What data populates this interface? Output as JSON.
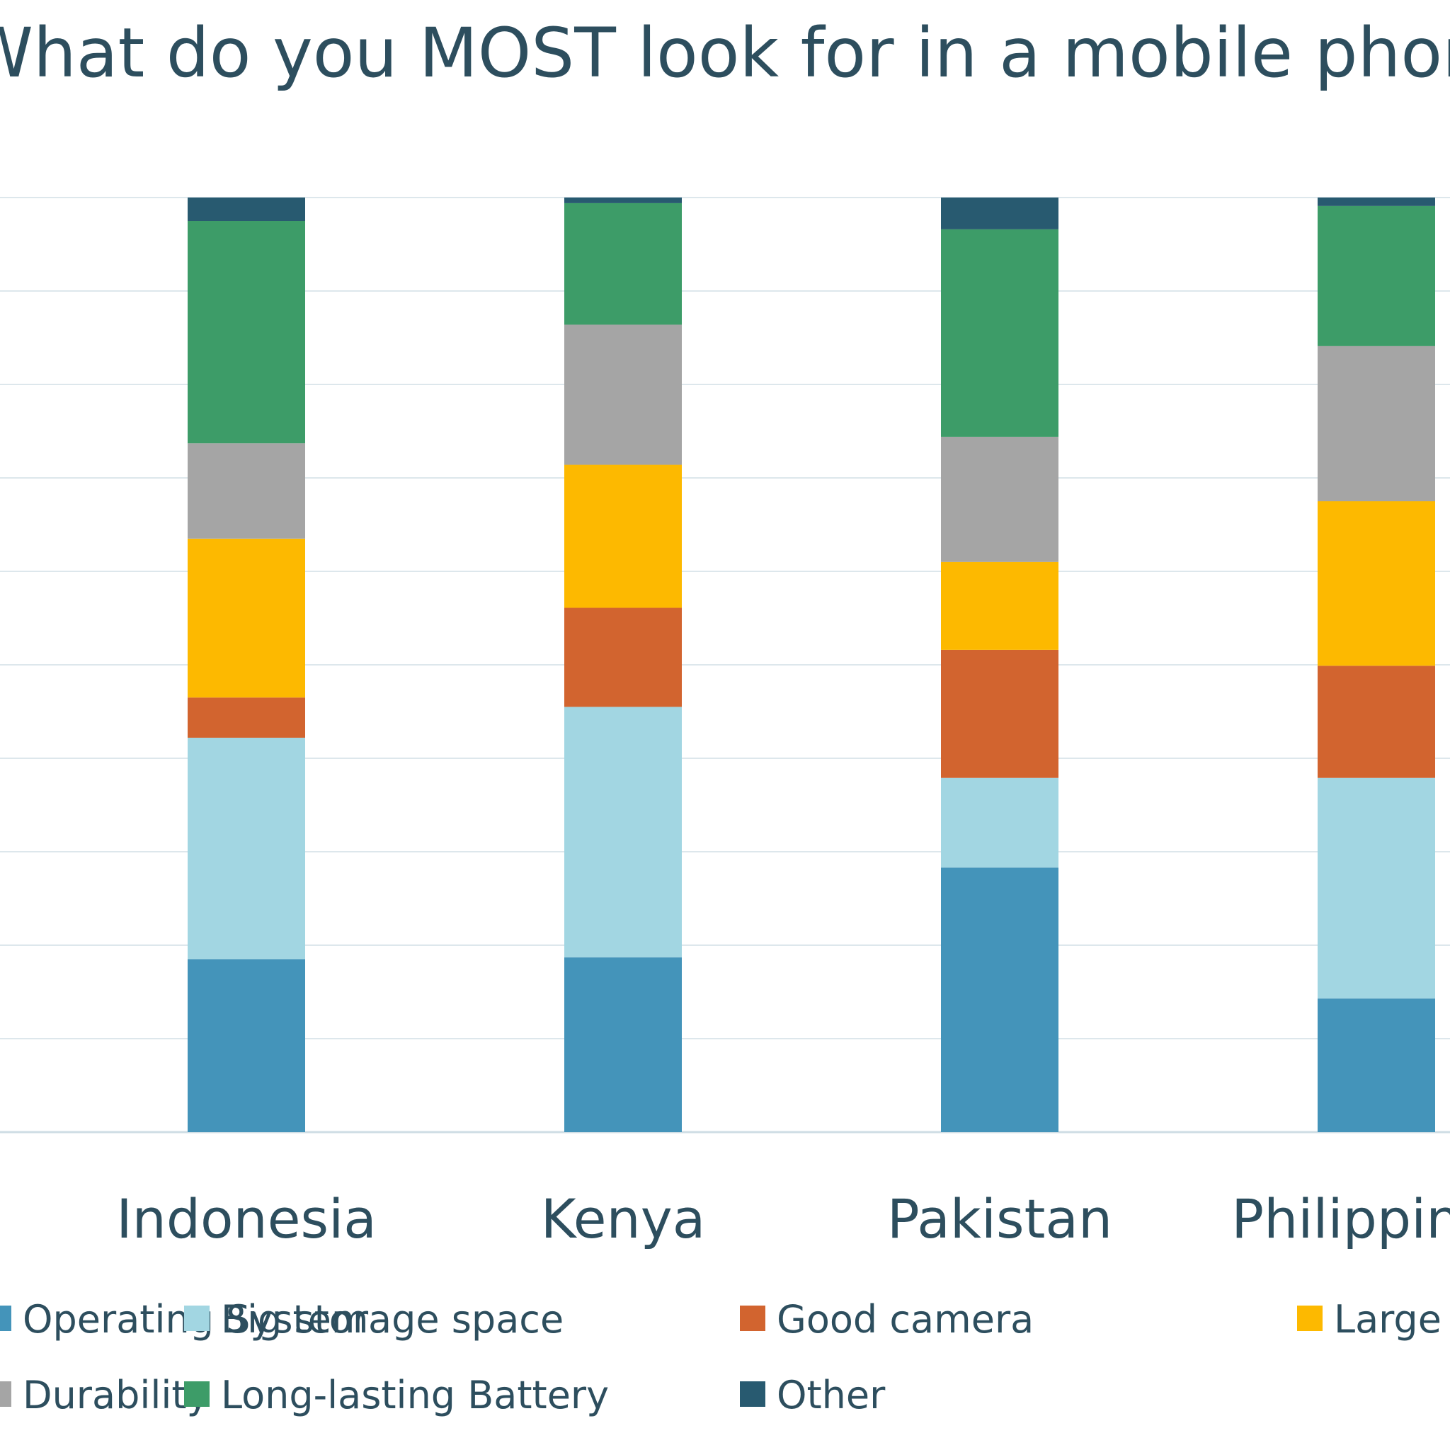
{
  "chart_data": {
    "type": "bar",
    "stacked": true,
    "normalized": true,
    "title": "What do you MOST look for in a mobile phone?",
    "xlabel": "",
    "ylabel": "",
    "ylim": [
      0,
      1
    ],
    "grid": true,
    "legend_position": "bottom",
    "categories": [
      "Indonesia",
      "Kenya",
      "Pakistan",
      "Philippines"
    ],
    "series": [
      {
        "name": "Operating System",
        "color": "#4494ba",
        "values": [
          0.185,
          0.187,
          0.283,
          0.143
        ]
      },
      {
        "name": "Big storage space",
        "color": "#a2d6e2",
        "values": [
          0.237,
          0.268,
          0.096,
          0.236
        ]
      },
      {
        "name": "Good camera",
        "color": "#d2642f",
        "values": [
          0.043,
          0.106,
          0.137,
          0.12
        ]
      },
      {
        "name": "Large Display",
        "color": "#fdb900",
        "values": [
          0.17,
          0.153,
          0.094,
          0.176
        ]
      },
      {
        "name": "Durability",
        "color": "#a5a5a5",
        "values": [
          0.102,
          0.15,
          0.134,
          0.166
        ]
      },
      {
        "name": "Long-lasting Battery",
        "color": "#3d9c68",
        "values": [
          0.238,
          0.13,
          0.222,
          0.15
        ]
      },
      {
        "name": "Other",
        "color": "#285a70",
        "values": [
          0.025,
          0.006,
          0.034,
          0.009
        ]
      }
    ],
    "colors": {
      "text": "#2d4e5e",
      "grid": "#dde7ec",
      "axis": "#cfdde4"
    }
  }
}
